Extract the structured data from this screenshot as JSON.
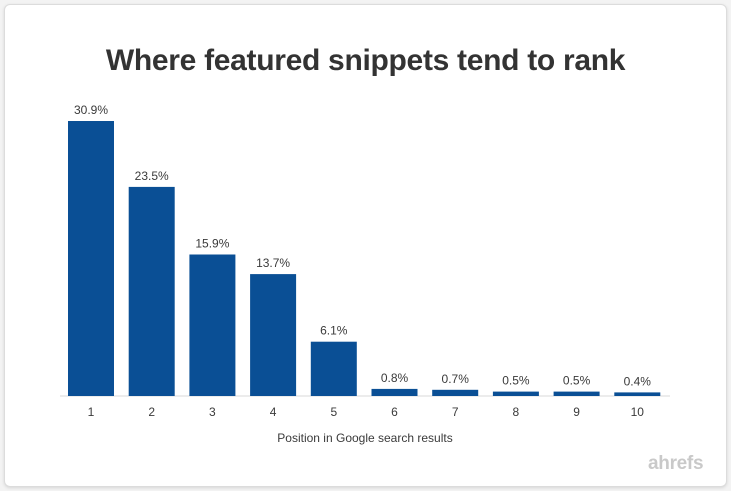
{
  "brand": "ahrefs",
  "chart_data": {
    "type": "bar",
    "title": "Where featured snippets tend to rank",
    "xlabel": "Position in Google search results",
    "ylabel": "",
    "categories": [
      "1",
      "2",
      "3",
      "4",
      "5",
      "6",
      "7",
      "8",
      "9",
      "10"
    ],
    "values": [
      30.9,
      23.5,
      15.9,
      13.7,
      6.1,
      0.8,
      0.7,
      0.5,
      0.5,
      0.4
    ],
    "value_labels": [
      "30.9%",
      "23.5%",
      "15.9%",
      "13.7%",
      "6.1%",
      "0.8%",
      "0.7%",
      "0.5%",
      "0.5%",
      "0.4%"
    ],
    "ylim": [
      0,
      30.9
    ],
    "grid": false,
    "legend": "none",
    "bar_color": "#0a4f95"
  }
}
